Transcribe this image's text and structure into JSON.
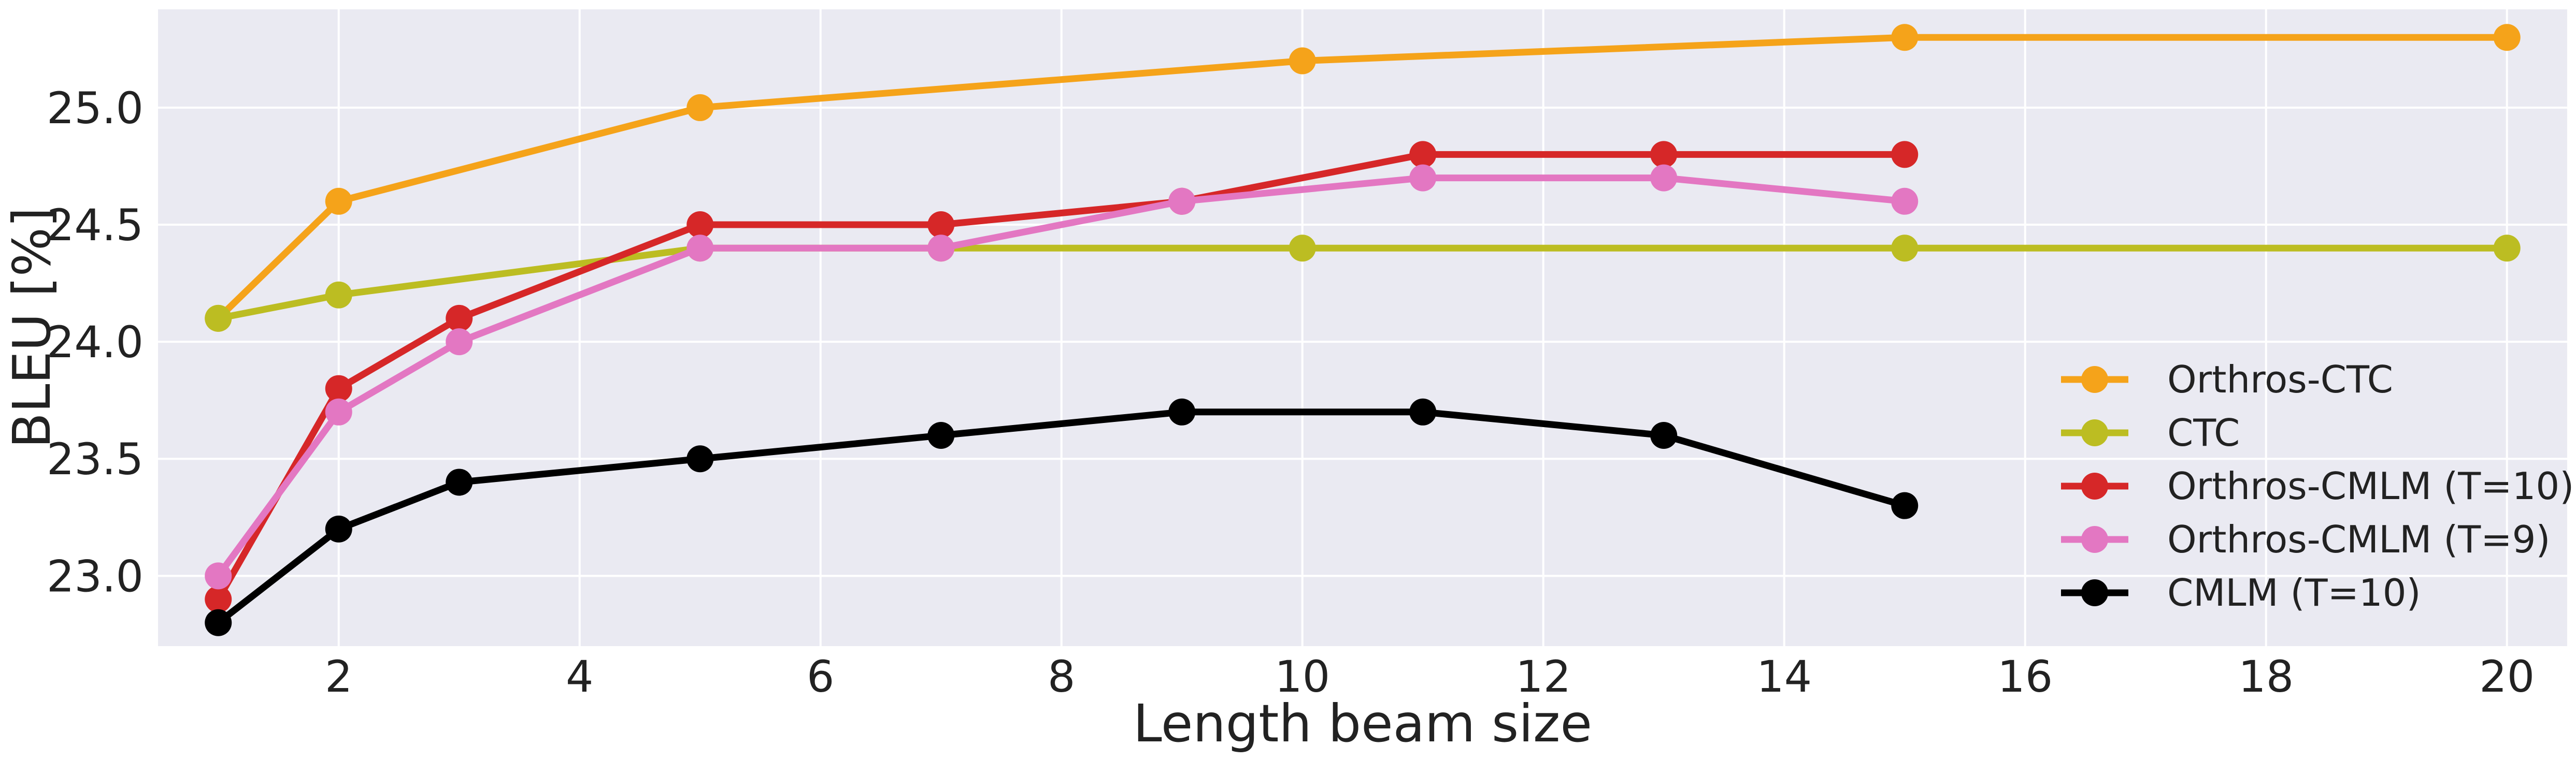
{
  "chart_data": {
    "type": "line",
    "title": "",
    "xlabel": "Length beam size",
    "ylabel": "BLEU [%]",
    "xlim": [
      0.5,
      20.5
    ],
    "ylim": [
      22.7,
      25.42
    ],
    "xticks": [
      2,
      4,
      6,
      8,
      10,
      12,
      14,
      16,
      18,
      20
    ],
    "yticks": [
      23.0,
      23.5,
      24.0,
      24.5,
      25.0
    ],
    "xtick_labels": [
      "2",
      "4",
      "6",
      "8",
      "10",
      "12",
      "14",
      "16",
      "18",
      "20"
    ],
    "ytick_labels": [
      "23.0",
      "23.5",
      "24.0",
      "24.5",
      "25.0"
    ],
    "grid": true,
    "legend_position": "lower-right",
    "series": [
      {
        "name": "Orthros-CTC",
        "color": "#f5a31a",
        "x": [
          1,
          2,
          5,
          10,
          15,
          20
        ],
        "values": [
          24.1,
          24.6,
          25.0,
          25.2,
          25.3,
          25.3
        ]
      },
      {
        "name": "CTC",
        "color": "#bcbd22",
        "x": [
          1,
          2,
          5,
          7,
          10,
          15,
          20
        ],
        "values": [
          24.1,
          24.2,
          24.4,
          24.4,
          24.4,
          24.4,
          24.4
        ]
      },
      {
        "name": "Orthros-CMLM (T=10)",
        "color": "#d62728",
        "x": [
          1,
          2,
          3,
          5,
          7,
          9,
          11,
          13,
          15
        ],
        "values": [
          22.9,
          23.8,
          24.1,
          24.5,
          24.5,
          24.6,
          24.8,
          24.8,
          24.8
        ]
      },
      {
        "name": "Orthros-CMLM (T=9)",
        "color": "#e377c2",
        "x": [
          1,
          2,
          3,
          5,
          7,
          9,
          11,
          13,
          15
        ],
        "values": [
          23.0,
          23.7,
          24.0,
          24.4,
          24.4,
          24.6,
          24.7,
          24.7,
          24.6
        ]
      },
      {
        "name": "CMLM (T=10)",
        "color": "#000000",
        "x": [
          1,
          2,
          3,
          5,
          7,
          9,
          11,
          13,
          15
        ],
        "values": [
          22.8,
          23.2,
          23.4,
          23.5,
          23.6,
          23.7,
          23.7,
          23.6,
          23.3
        ]
      }
    ]
  },
  "colors": {
    "plot_background": "#eaeaf2",
    "grid": "#ffffff",
    "text": "#222222"
  }
}
